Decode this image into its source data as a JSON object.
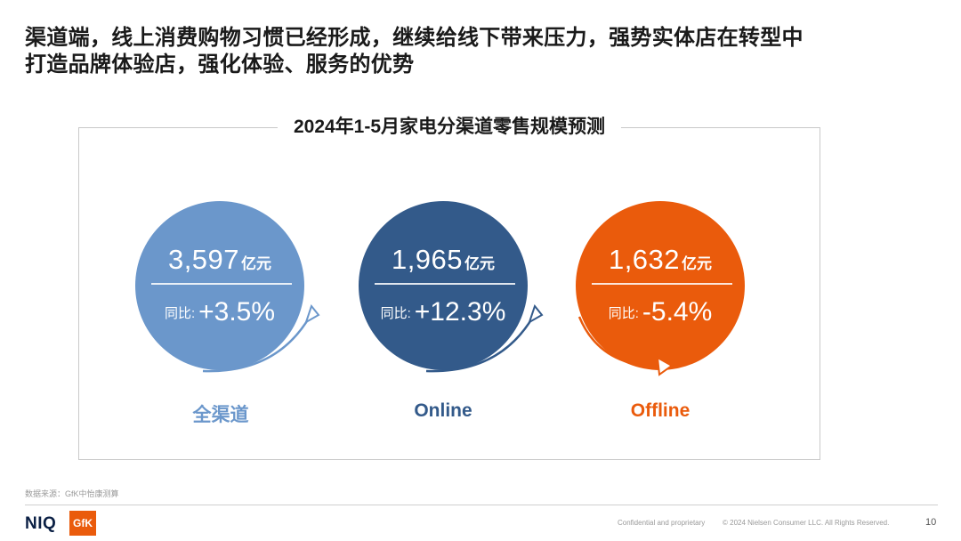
{
  "headline": {
    "line1": "渠道端，线上消费购物习惯已经形成，继续给线下带来压力，强势实体店在转型中",
    "line2": "打造品牌体验店，强化体验、服务的优势"
  },
  "panel": {
    "title": "2024年1-5月家电分渠道零售规模预测"
  },
  "metrics": [
    {
      "value": "3,597",
      "unit": "亿元",
      "yoy_label": "同比:",
      "yoy": "+3.5%",
      "channel": "全渠道",
      "color": "#6b97cb",
      "trend": "up"
    },
    {
      "value": "1,965",
      "unit": "亿元",
      "yoy_label": "同比:",
      "yoy": "+12.3%",
      "channel": "Online",
      "color": "#335a8a",
      "trend": "up"
    },
    {
      "value": "1,632",
      "unit": "亿元",
      "yoy_label": "同比:",
      "yoy": "-5.4%",
      "channel": "Offline",
      "color": "#ea5b0c",
      "trend": "down"
    }
  ],
  "footer": {
    "source": "数据来源：GfK中怡康测算",
    "brand_niq": "NIQ",
    "brand_gfk": "GfK",
    "confidential": "Confidential and proprietary",
    "copyright": "© 2024 Nielsen Consumer LLC. All Rights Reserved.",
    "page": "10"
  }
}
